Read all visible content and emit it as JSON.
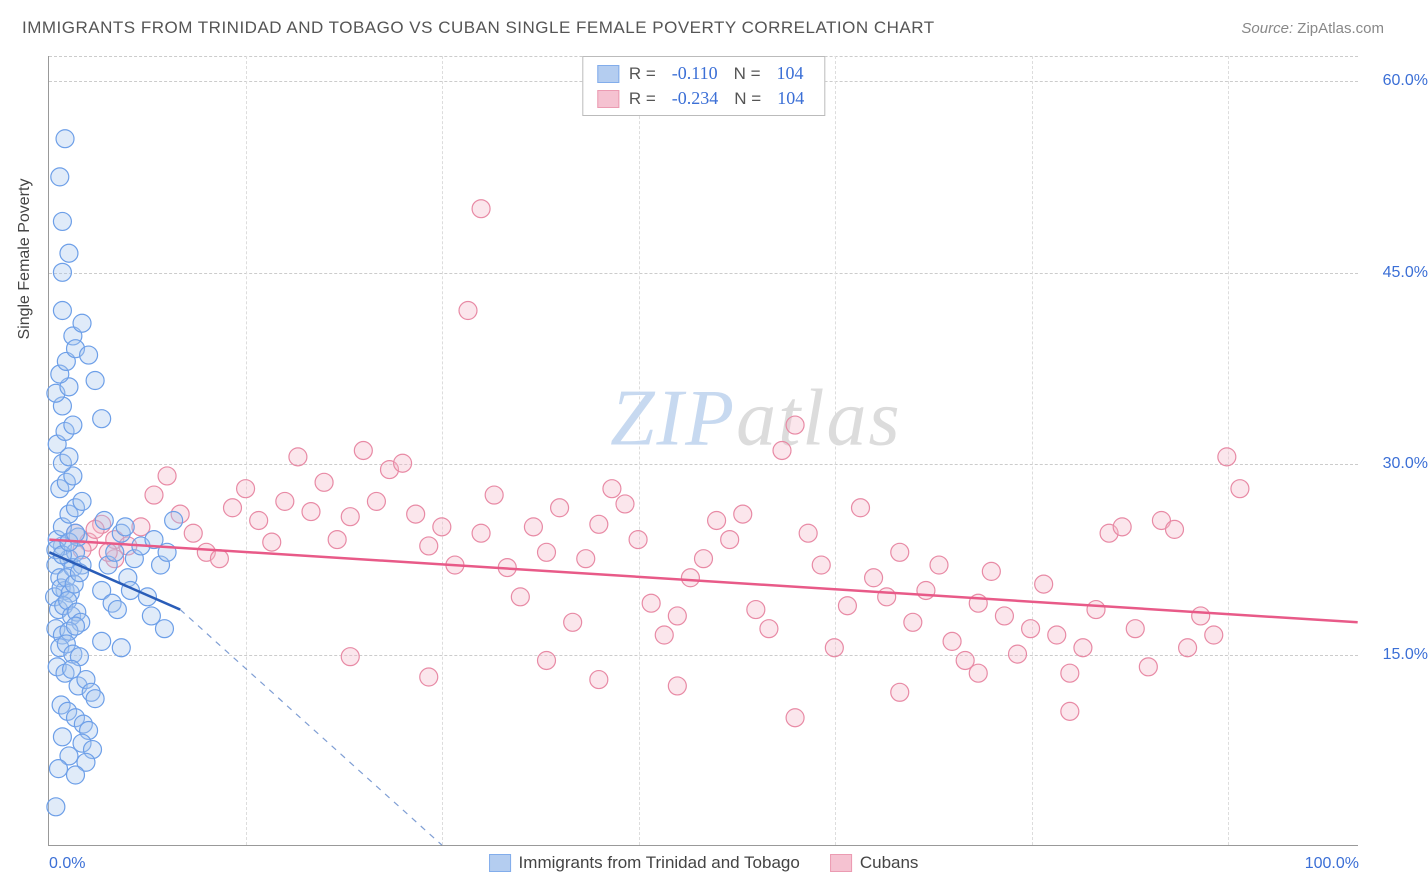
{
  "title": "IMMIGRANTS FROM TRINIDAD AND TOBAGO VS CUBAN SINGLE FEMALE POVERTY CORRELATION CHART",
  "source_label": "Source:",
  "source_value": "ZipAtlas.com",
  "yaxis_title": "Single Female Poverty",
  "watermark_a": "ZIP",
  "watermark_b": "atlas",
  "chart": {
    "type": "scatter",
    "xlim": [
      0,
      100
    ],
    "ylim": [
      0,
      62
    ],
    "x_ticks": [
      0,
      100
    ],
    "x_tick_labels": [
      "0.0%",
      "100.0%"
    ],
    "y_ticks": [
      15,
      30,
      45,
      60
    ],
    "y_tick_labels": [
      "15.0%",
      "30.0%",
      "45.0%",
      "60.0%"
    ],
    "x_gridlines": [
      15,
      30,
      45,
      60,
      75,
      90
    ],
    "marker_radius": 9,
    "marker_stroke_width": 1.2,
    "marker_fill_opacity": 0.35,
    "background_color": "#ffffff",
    "axis_color": "#999999",
    "grid_color": "#cccccc",
    "tick_label_color": "#3b6fd6",
    "series": [
      {
        "name": "Immigrants from Trinidad and Tobago",
        "color_stroke": "#6d9fe8",
        "color_fill": "#a7c5ee",
        "R": "-0.110",
        "N": "104",
        "points": [
          [
            0.5,
            22
          ],
          [
            0.8,
            21
          ],
          [
            1.0,
            23.5
          ],
          [
            1.2,
            20
          ],
          [
            0.6,
            24
          ],
          [
            1.5,
            22.5
          ],
          [
            1.8,
            21.8
          ],
          [
            2.0,
            23
          ],
          [
            2.2,
            24.2
          ],
          [
            2.5,
            22
          ],
          [
            0.4,
            19.5
          ],
          [
            0.9,
            20.2
          ],
          [
            1.3,
            21
          ],
          [
            1.6,
            19.8
          ],
          [
            1.9,
            20.5
          ],
          [
            2.3,
            21.4
          ],
          [
            0.7,
            18.5
          ],
          [
            1.1,
            18.8
          ],
          [
            1.4,
            19.2
          ],
          [
            1.7,
            18
          ],
          [
            2.1,
            18.3
          ],
          [
            2.4,
            17.5
          ],
          [
            0.5,
            17
          ],
          [
            1.0,
            16.5
          ],
          [
            1.5,
            16.8
          ],
          [
            2.0,
            17.2
          ],
          [
            0.8,
            15.5
          ],
          [
            1.3,
            15.8
          ],
          [
            1.8,
            15
          ],
          [
            2.3,
            14.8
          ],
          [
            0.6,
            14
          ],
          [
            1.2,
            13.5
          ],
          [
            1.7,
            13.8
          ],
          [
            2.2,
            12.5
          ],
          [
            2.8,
            13
          ],
          [
            3.2,
            12
          ],
          [
            3.5,
            11.5
          ],
          [
            0.9,
            11
          ],
          [
            1.4,
            10.5
          ],
          [
            2.0,
            10
          ],
          [
            2.6,
            9.5
          ],
          [
            3.0,
            9
          ],
          [
            1.0,
            8.5
          ],
          [
            2.5,
            8
          ],
          [
            3.3,
            7.5
          ],
          [
            1.5,
            7
          ],
          [
            2.8,
            6.5
          ],
          [
            0.7,
            6
          ],
          [
            2.0,
            5.5
          ],
          [
            0.5,
            3
          ],
          [
            4.0,
            20
          ],
          [
            4.5,
            22
          ],
          [
            5.0,
            23
          ],
          [
            5.5,
            24.5
          ],
          [
            4.2,
            25.5
          ],
          [
            5.8,
            25
          ],
          [
            4.8,
            19
          ],
          [
            5.2,
            18.5
          ],
          [
            4.0,
            16
          ],
          [
            5.5,
            15.5
          ],
          [
            6.0,
            21
          ],
          [
            6.5,
            22.5
          ],
          [
            7.0,
            23.5
          ],
          [
            6.2,
            20
          ],
          [
            7.5,
            19.5
          ],
          [
            8.0,
            24
          ],
          [
            8.5,
            22
          ],
          [
            9.0,
            23
          ],
          [
            7.8,
            18
          ],
          [
            8.8,
            17
          ],
          [
            9.5,
            25.5
          ],
          [
            1.0,
            25
          ],
          [
            1.5,
            26
          ],
          [
            2.0,
            26.5
          ],
          [
            2.5,
            27
          ],
          [
            0.8,
            28
          ],
          [
            1.3,
            28.5
          ],
          [
            1.8,
            29
          ],
          [
            1.0,
            30
          ],
          [
            1.5,
            30.5
          ],
          [
            0.6,
            31.5
          ],
          [
            1.2,
            32.5
          ],
          [
            1.8,
            33
          ],
          [
            1.0,
            34.5
          ],
          [
            0.5,
            35.5
          ],
          [
            1.5,
            36
          ],
          [
            0.8,
            37
          ],
          [
            1.3,
            38
          ],
          [
            1.8,
            40
          ],
          [
            1.0,
            42
          ],
          [
            2.0,
            39
          ],
          [
            2.5,
            41
          ],
          [
            3.0,
            38.5
          ],
          [
            3.5,
            36.5
          ],
          [
            4.0,
            33.5
          ],
          [
            1.0,
            45
          ],
          [
            1.5,
            46.5
          ],
          [
            1.0,
            49
          ],
          [
            0.8,
            52.5
          ],
          [
            1.2,
            55.5
          ],
          [
            0.5,
            23.2
          ],
          [
            1.0,
            22.8
          ],
          [
            1.5,
            23.8
          ],
          [
            2.0,
            24.5
          ]
        ]
      },
      {
        "name": "Cubans",
        "color_stroke": "#e88aa5",
        "color_fill": "#f4b8c9",
        "R": "-0.234",
        "N": "104",
        "points": [
          [
            2,
            24.5
          ],
          [
            3,
            23.8
          ],
          [
            4,
            25.2
          ],
          [
            5,
            24
          ],
          [
            6,
            23.5
          ],
          [
            7,
            25
          ],
          [
            8,
            27.5
          ],
          [
            9,
            29
          ],
          [
            10,
            26
          ],
          [
            11,
            24.5
          ],
          [
            12,
            23
          ],
          [
            13,
            22.5
          ],
          [
            14,
            26.5
          ],
          [
            15,
            28
          ],
          [
            16,
            25.5
          ],
          [
            17,
            23.8
          ],
          [
            18,
            27
          ],
          [
            19,
            30.5
          ],
          [
            20,
            26.2
          ],
          [
            21,
            28.5
          ],
          [
            22,
            24
          ],
          [
            23,
            25.8
          ],
          [
            24,
            31
          ],
          [
            25,
            27
          ],
          [
            26,
            29.5
          ],
          [
            27,
            30
          ],
          [
            28,
            26
          ],
          [
            29,
            23.5
          ],
          [
            30,
            25
          ],
          [
            31,
            22
          ],
          [
            32,
            42
          ],
          [
            33,
            24.5
          ],
          [
            34,
            27.5
          ],
          [
            35,
            21.8
          ],
          [
            36,
            19.5
          ],
          [
            37,
            25
          ],
          [
            38,
            23
          ],
          [
            39,
            26.5
          ],
          [
            40,
            17.5
          ],
          [
            41,
            22.5
          ],
          [
            42,
            25.2
          ],
          [
            43,
            28
          ],
          [
            44,
            26.8
          ],
          [
            45,
            24
          ],
          [
            46,
            19
          ],
          [
            47,
            16.5
          ],
          [
            48,
            18
          ],
          [
            49,
            21
          ],
          [
            50,
            22.5
          ],
          [
            51,
            25.5
          ],
          [
            52,
            24
          ],
          [
            53,
            26
          ],
          [
            33,
            50
          ],
          [
            54,
            18.5
          ],
          [
            55,
            17
          ],
          [
            56,
            31
          ],
          [
            57,
            33
          ],
          [
            58,
            24.5
          ],
          [
            59,
            22
          ],
          [
            60,
            15.5
          ],
          [
            61,
            18.8
          ],
          [
            62,
            26.5
          ],
          [
            63,
            21
          ],
          [
            64,
            19.5
          ],
          [
            65,
            23
          ],
          [
            66,
            17.5
          ],
          [
            67,
            20
          ],
          [
            68,
            22
          ],
          [
            69,
            16
          ],
          [
            70,
            14.5
          ],
          [
            71,
            19
          ],
          [
            72,
            21.5
          ],
          [
            73,
            18
          ],
          [
            74,
            15
          ],
          [
            75,
            17
          ],
          [
            76,
            20.5
          ],
          [
            77,
            16.5
          ],
          [
            78,
            13.5
          ],
          [
            79,
            15.5
          ],
          [
            80,
            18.5
          ],
          [
            81,
            24.5
          ],
          [
            82,
            25
          ],
          [
            83,
            17
          ],
          [
            84,
            14
          ],
          [
            85,
            25.5
          ],
          [
            86,
            24.8
          ],
          [
            87,
            15.5
          ],
          [
            88,
            18
          ],
          [
            89,
            16.5
          ],
          [
            90,
            30.5
          ],
          [
            91,
            28
          ],
          [
            57,
            10
          ],
          [
            48,
            12.5
          ],
          [
            42,
            13
          ],
          [
            38,
            14.5
          ],
          [
            23,
            14.8
          ],
          [
            29,
            13.2
          ],
          [
            65,
            12
          ],
          [
            71,
            13.5
          ],
          [
            78,
            10.5
          ],
          [
            5,
            22.5
          ],
          [
            2.5,
            23.2
          ],
          [
            3.5,
            24.8
          ],
          [
            4.5,
            23
          ]
        ]
      }
    ],
    "trend_lines": [
      {
        "series": 0,
        "color": "#2a5db8",
        "width": 2.5,
        "y_at_x0": 23.0,
        "y_at_x10": 18.5,
        "x_end": 10,
        "dash_extend_to_x": 30,
        "dash_y_at_end": 0
      },
      {
        "series": 1,
        "color": "#e85a88",
        "width": 2.5,
        "y_at_x0": 24.0,
        "y_at_x100": 17.5,
        "x_end": 100
      }
    ]
  }
}
